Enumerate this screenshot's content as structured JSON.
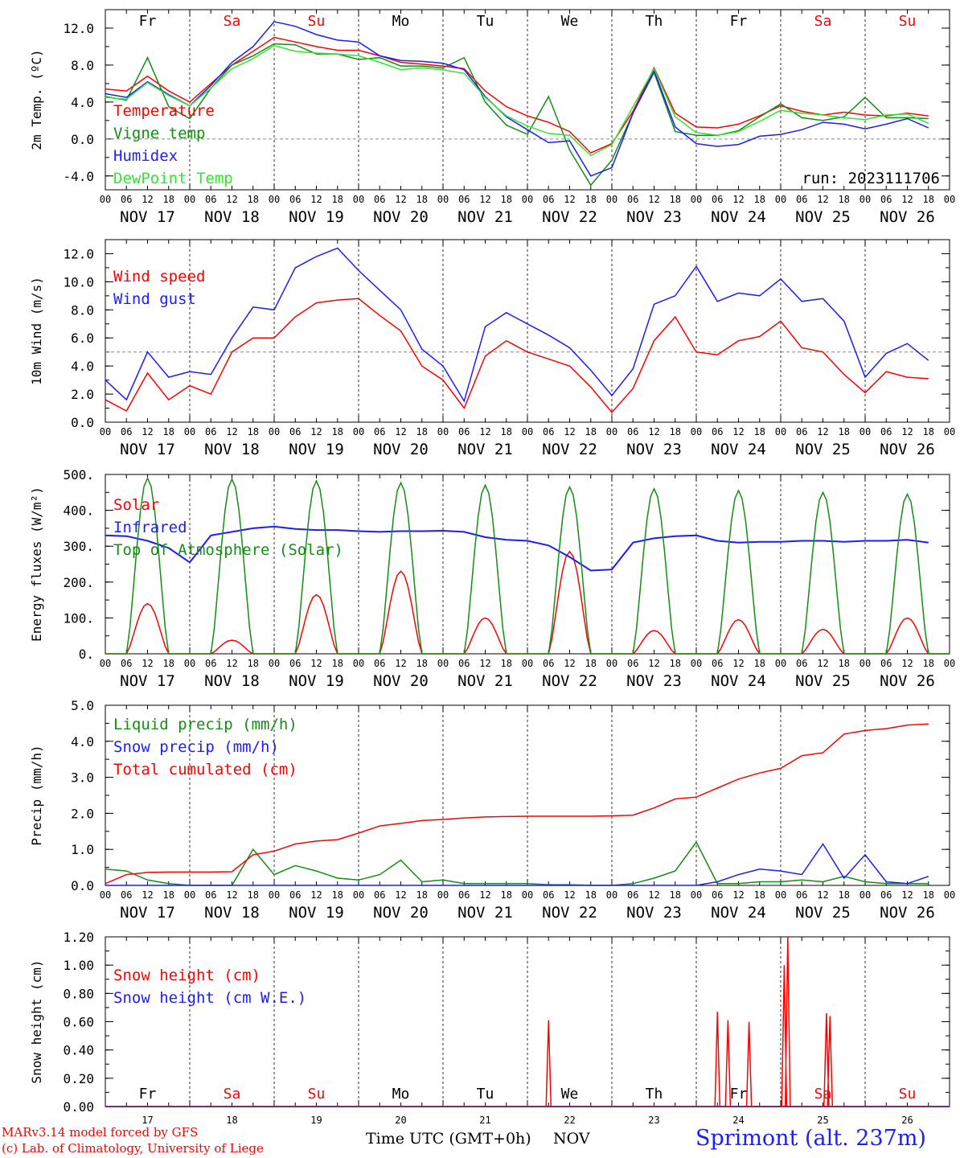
{
  "run_label": "run: 2023111706",
  "day_labels": [
    "Fr",
    "Sa",
    "Su",
    "Mo",
    "Tu",
    "We",
    "Th",
    "Fr",
    "Sa",
    "Su"
  ],
  "date_labels": [
    "NOV 17",
    "NOV 18",
    "NOV 19",
    "NOV 20",
    "NOV 21",
    "NOV 22",
    "NOV 23",
    "NOV 24",
    "NOV 25",
    "NOV 26"
  ],
  "hour_labels": [
    "00",
    "06",
    "12",
    "18"
  ],
  "day_numbers": [
    "17",
    "18",
    "19",
    "20",
    "21",
    "22",
    "23",
    "24",
    "25",
    "26"
  ],
  "colors": {
    "red": "#ff0000",
    "green": "#138d13",
    "blue": "#1c1cff",
    "lightgreen": "#33e433",
    "weekend": "#ff0000",
    "weekday": "#000000"
  },
  "footer": {
    "model_line": "MARv3.14 model forced by GFS",
    "lab_line": "(c) Lab. of Climatology, University of Liege",
    "axis_title": "Time UTC (GMT+0h)",
    "month": "NOV",
    "station": "Sprimont (alt. 237m)"
  },
  "chart_data": [
    {
      "type": "line",
      "ylabel": "2m Temp. (ºC)",
      "ylim": [
        -5.5,
        14.0
      ],
      "yticks": [
        -4.0,
        0.0,
        4.0,
        8.0,
        12.0
      ],
      "ytick_labels": [
        "-4.0",
        "0.0",
        "4.0",
        "8.0",
        "12.0"
      ],
      "ref_line": 0.0,
      "x_hours": [
        0,
        6,
        12,
        18,
        24,
        30,
        36,
        42,
        48,
        54,
        60,
        66,
        72,
        78,
        84,
        90,
        96,
        102,
        108,
        114,
        120,
        126,
        132,
        138,
        144,
        150,
        156,
        162,
        168,
        174,
        180,
        186,
        192,
        198,
        204,
        210,
        216,
        222,
        228,
        234
      ],
      "series": [
        {
          "name": "Temperature",
          "color": "red",
          "values": [
            5.4,
            5.2,
            6.8,
            5.2,
            4.0,
            6.0,
            8.0,
            9.5,
            11.0,
            10.5,
            10.0,
            9.6,
            9.6,
            9.0,
            8.3,
            8.1,
            7.9,
            7.6,
            5.2,
            3.5,
            2.5,
            1.8,
            0.8,
            -1.5,
            -0.5,
            3.0,
            7.7,
            2.8,
            1.3,
            1.2,
            1.6,
            2.5,
            3.6,
            3.0,
            2.6,
            2.9,
            2.6,
            2.5,
            2.8,
            2.5
          ]
        },
        {
          "name": "Vigne temp",
          "color": "green",
          "values": [
            4.6,
            4.2,
            8.8,
            3.5,
            2.2,
            5.5,
            8.0,
            9.0,
            10.3,
            10.2,
            9.2,
            9.2,
            8.6,
            8.8,
            7.9,
            7.9,
            7.7,
            8.8,
            4.0,
            1.5,
            0.5,
            4.6,
            -1.2,
            -5.0,
            -2.3,
            2.8,
            7.2,
            0.8,
            0.4,
            0.4,
            0.9,
            2.4,
            3.8,
            2.3,
            2.0,
            2.4,
            4.5,
            2.3,
            2.3,
            2.2
          ]
        },
        {
          "name": "Humidex",
          "color": "blue",
          "values": [
            4.9,
            4.5,
            6.2,
            4.8,
            3.6,
            5.8,
            8.3,
            10.0,
            12.7,
            12.2,
            11.3,
            10.7,
            10.5,
            9.0,
            8.5,
            8.4,
            8.2,
            7.5,
            4.6,
            2.4,
            1.0,
            -0.4,
            -0.2,
            -4.0,
            -3.1,
            2.8,
            7.4,
            1.3,
            -0.5,
            -0.8,
            -0.6,
            0.3,
            0.5,
            1.0,
            1.8,
            1.6,
            1.1,
            1.6,
            2.2,
            1.2
          ]
        },
        {
          "name": "DewPoint Temp",
          "color": "lightgreen",
          "values": [
            4.5,
            4.3,
            6.1,
            4.7,
            3.6,
            5.5,
            7.6,
            8.7,
            10.1,
            9.5,
            9.3,
            9.2,
            9.0,
            8.3,
            7.5,
            7.7,
            7.5,
            7.1,
            4.5,
            2.5,
            1.4,
            0.6,
            0.4,
            -1.8,
            -0.6,
            3.5,
            7.6,
            2.4,
            0.7,
            0.4,
            0.8,
            1.9,
            3.1,
            2.8,
            2.6,
            2.3,
            2.1,
            2.6,
            2.7,
            1.7
          ]
        }
      ]
    },
    {
      "type": "line",
      "ylabel": "10m Wind (m/s)",
      "ylim": [
        0,
        13.0
      ],
      "yticks": [
        0,
        2.0,
        4.0,
        6.0,
        8.0,
        10.0,
        12.0
      ],
      "ytick_labels": [
        "0.0",
        "2.0",
        "4.0",
        "6.0",
        "8.0",
        "10.0",
        "12.0"
      ],
      "ref_line": 5.0,
      "x_hours": [
        0,
        6,
        12,
        18,
        24,
        30,
        36,
        42,
        48,
        54,
        60,
        66,
        72,
        78,
        84,
        90,
        96,
        102,
        108,
        114,
        120,
        126,
        132,
        138,
        144,
        150,
        156,
        162,
        168,
        174,
        180,
        186,
        192,
        198,
        204,
        210,
        216,
        222,
        228,
        234
      ],
      "series": [
        {
          "name": "Wind speed",
          "color": "red",
          "values": [
            1.6,
            0.8,
            3.5,
            1.6,
            2.6,
            2.0,
            5.0,
            6.0,
            6.0,
            7.5,
            8.5,
            8.7,
            8.8,
            7.6,
            6.5,
            4.0,
            3.0,
            1.0,
            4.7,
            5.8,
            5.0,
            4.5,
            4.0,
            2.5,
            0.7,
            2.4,
            5.8,
            7.5,
            5.0,
            4.8,
            5.8,
            6.1,
            7.2,
            5.3,
            5.0,
            3.4,
            2.1,
            3.6,
            3.2,
            3.1
          ]
        },
        {
          "name": "Wind gust",
          "color": "blue",
          "values": [
            3.0,
            1.6,
            5.0,
            3.2,
            3.6,
            3.4,
            6.0,
            8.2,
            8.0,
            11.0,
            11.8,
            12.4,
            10.8,
            9.4,
            8.0,
            5.2,
            4.0,
            1.5,
            6.8,
            7.8,
            7.0,
            6.2,
            5.3,
            3.7,
            1.9,
            3.8,
            8.4,
            9.0,
            11.1,
            8.6,
            9.2,
            9.0,
            10.2,
            8.6,
            8.8,
            7.2,
            3.2,
            4.9,
            5.6,
            4.4
          ]
        }
      ]
    },
    {
      "type": "line",
      "ylabel": "Energy fluxes (W/m²)",
      "ylim": [
        0,
        500
      ],
      "yticks": [
        0,
        100,
        200,
        300,
        400,
        500
      ],
      "ytick_labels": [
        "0.",
        "100.",
        "200.",
        "300.",
        "400.",
        "500."
      ],
      "series": [
        {
          "name": "Solar",
          "color": "red",
          "daily_peaks": [
            140,
            38,
            165,
            230,
            100,
            285,
            65,
            95,
            68,
            100
          ]
        },
        {
          "name": "Infrared",
          "color": "blue",
          "x_hours": [
            0,
            6,
            12,
            18,
            24,
            30,
            36,
            42,
            48,
            54,
            60,
            66,
            72,
            78,
            84,
            90,
            96,
            102,
            108,
            114,
            120,
            126,
            132,
            138,
            144,
            150,
            156,
            162,
            168,
            174,
            180,
            186,
            192,
            198,
            204,
            210,
            216,
            222,
            228,
            234
          ],
          "values": [
            330,
            328,
            315,
            295,
            255,
            330,
            340,
            350,
            355,
            348,
            345,
            345,
            342,
            340,
            342,
            342,
            343,
            340,
            325,
            318,
            315,
            302,
            270,
            232,
            235,
            310,
            322,
            328,
            330,
            315,
            310,
            312,
            312,
            315,
            315,
            312,
            315,
            315,
            318,
            310
          ]
        },
        {
          "name": "Top of Atmosphere (Solar)",
          "color": "green",
          "daily_peaks": [
            490,
            487,
            482,
            477,
            470,
            465,
            460,
            455,
            450,
            445
          ]
        }
      ]
    },
    {
      "type": "line",
      "ylabel": "Precip (mm/h)",
      "ylim": [
        0,
        5.0
      ],
      "yticks": [
        0,
        1.0,
        2.0,
        3.0,
        4.0,
        5.0
      ],
      "ytick_labels": [
        "0.0",
        "1.0",
        "2.0",
        "3.0",
        "4.0",
        "5.0"
      ],
      "series": [
        {
          "name": "Liquid precip (mm/h)",
          "color": "green",
          "x_hours": [
            0,
            6,
            12,
            18,
            24,
            30,
            36,
            42,
            48,
            54,
            60,
            66,
            72,
            78,
            84,
            90,
            96,
            102,
            108,
            114,
            120,
            126,
            132,
            138,
            144,
            150,
            156,
            162,
            168,
            174,
            180,
            186,
            192,
            198,
            204,
            210,
            216,
            222,
            228,
            234
          ],
          "values": [
            0.45,
            0.4,
            0.15,
            0.05,
            0.0,
            0.0,
            0.0,
            1.0,
            0.3,
            0.55,
            0.4,
            0.2,
            0.15,
            0.3,
            0.7,
            0.1,
            0.15,
            0.05,
            0.05,
            0.05,
            0.05,
            0.02,
            0.02,
            0.0,
            0.0,
            0.05,
            0.2,
            0.4,
            1.2,
            0.05,
            0.05,
            0.1,
            0.1,
            0.15,
            0.1,
            0.25,
            0.1,
            0.05,
            0.05,
            0.05
          ]
        },
        {
          "name": "Snow precip (mm/h)",
          "color": "blue",
          "x_hours": [
            0,
            6,
            12,
            18,
            24,
            30,
            36,
            42,
            48,
            54,
            60,
            66,
            72,
            78,
            84,
            90,
            96,
            102,
            108,
            114,
            120,
            126,
            132,
            138,
            144,
            150,
            156,
            162,
            168,
            174,
            180,
            186,
            192,
            198,
            204,
            210,
            216,
            222,
            228,
            234
          ],
          "values": [
            0,
            0,
            0,
            0,
            0,
            0,
            0,
            0,
            0,
            0,
            0,
            0,
            0,
            0,
            0,
            0,
            0,
            0,
            0,
            0,
            0,
            0,
            0,
            0,
            0,
            0,
            0,
            0,
            0,
            0.1,
            0.3,
            0.45,
            0.4,
            0.3,
            1.15,
            0.2,
            0.85,
            0.1,
            0.05,
            0.25
          ]
        },
        {
          "name": "Total cumulated (cm)",
          "color": "red",
          "x_hours": [
            0,
            6,
            12,
            18,
            24,
            30,
            36,
            42,
            48,
            54,
            60,
            66,
            72,
            78,
            84,
            90,
            96,
            102,
            108,
            114,
            120,
            126,
            132,
            138,
            144,
            150,
            156,
            162,
            168,
            174,
            180,
            186,
            192,
            198,
            204,
            210,
            216,
            222,
            228,
            234
          ],
          "values": [
            0.05,
            0.3,
            0.36,
            0.37,
            0.37,
            0.37,
            0.38,
            0.85,
            0.95,
            1.15,
            1.23,
            1.27,
            1.45,
            1.65,
            1.72,
            1.8,
            1.83,
            1.87,
            1.9,
            1.91,
            1.92,
            1.92,
            1.92,
            1.92,
            1.93,
            1.95,
            2.15,
            2.4,
            2.45,
            2.7,
            2.95,
            3.12,
            3.25,
            3.6,
            3.68,
            4.2,
            4.3,
            4.35,
            4.45,
            4.48
          ]
        }
      ]
    },
    {
      "type": "line",
      "ylabel": "Snow height (cm)",
      "ylim": [
        0,
        1.2
      ],
      "yticks": [
        0,
        0.2,
        0.4,
        0.6,
        0.8,
        1.0,
        1.2
      ],
      "ytick_labels": [
        "0.00",
        "0.20",
        "0.40",
        "0.60",
        "0.80",
        "1.00",
        "1.20"
      ],
      "series": [
        {
          "name": "Snow height (cm)",
          "color": "red",
          "spikes": [
            {
              "x": 126,
              "h": 0.61
            },
            {
              "x": 174,
              "h": 0.67
            },
            {
              "x": 177,
              "h": 0.61
            },
            {
              "x": 183,
              "h": 0.6
            },
            {
              "x": 193,
              "h": 1.0
            },
            {
              "x": 194,
              "h": 1.2
            },
            {
              "x": 205,
              "h": 0.66
            },
            {
              "x": 206,
              "h": 0.64
            }
          ]
        },
        {
          "name": "Snow height (cm W.E.)",
          "color": "blue",
          "values": []
        }
      ]
    }
  ]
}
